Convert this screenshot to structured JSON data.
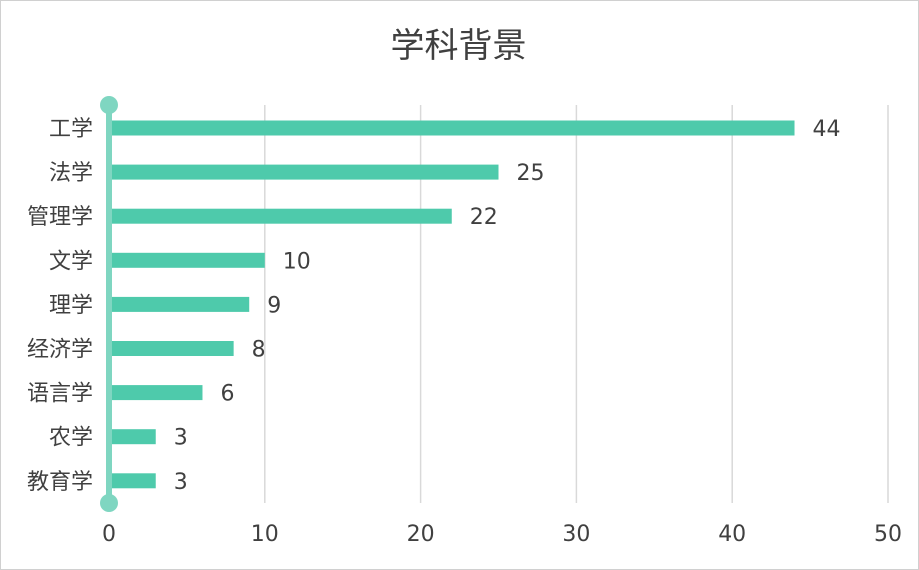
{
  "chart_data": {
    "type": "bar",
    "orientation": "horizontal",
    "title": "学科背景",
    "categories": [
      "工学",
      "法学",
      "管理学",
      "文学",
      "理学",
      "经济学",
      "语言学",
      "农学",
      "教育学"
    ],
    "values": [
      44,
      25,
      22,
      10,
      9,
      8,
      6,
      3,
      3
    ],
    "xlim": [
      0,
      50
    ],
    "xticks": [
      0,
      10,
      20,
      30,
      40,
      50
    ],
    "grid": true,
    "legend": "none",
    "bar_color": "#4ecaab",
    "axis_color": "#7fd6c1",
    "grid_color": "#d9d9d9"
  }
}
